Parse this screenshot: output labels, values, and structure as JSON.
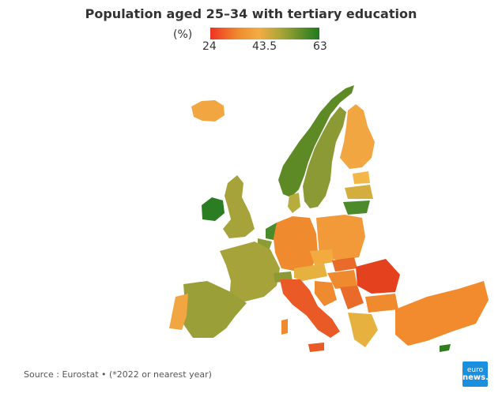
{
  "title": "Population aged 25–34 with tertiary education",
  "legend": {
    "unit": "(%)",
    "min_label": "24",
    "mid_label": "43.5",
    "max_label": "63",
    "colors": [
      "#ee3322",
      "#f08a2e",
      "#f2ad44",
      "#a8a537",
      "#1f7a1f"
    ]
  },
  "source": "Source : Eurostat • (*2022 or nearest year)",
  "logo": {
    "line1": "euro",
    "line2": "news."
  },
  "map_colors": {
    "green_dark": "#2f7d1f",
    "olive": "#9aa037",
    "olive_light": "#b4a93e",
    "yellow": "#e6b13f",
    "orange_light": "#f2a641",
    "orange": "#f08a2e",
    "orange_dark": "#ea6a2a",
    "red": "#e4421f",
    "turkey": "#f28a2e"
  }
}
